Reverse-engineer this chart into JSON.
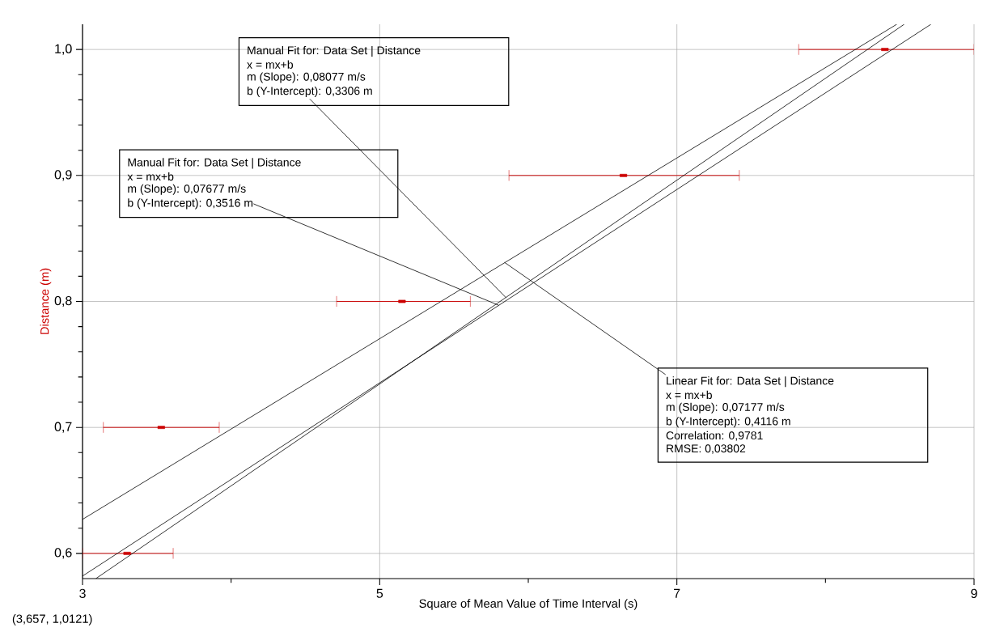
{
  "chart_data": {
    "type": "scatter",
    "xlabel": "Square of Mean Value of Time Interval (s)",
    "ylabel": "Distance (m)",
    "xlim": [
      3,
      9
    ],
    "ylim": [
      0.58,
      1.02
    ],
    "xticks": [
      3,
      {
        "value": 4,
        "label": null
      },
      5,
      {
        "value": 6,
        "label": null
      },
      7,
      {
        "value": 8,
        "label": null
      },
      9
    ],
    "yticks": [
      {
        "value": 0.6,
        "label": "0,6"
      },
      {
        "value": 0.62,
        "label": null
      },
      {
        "value": 0.64,
        "label": null
      },
      {
        "value": 0.66,
        "label": null
      },
      {
        "value": 0.68,
        "label": null
      },
      {
        "value": 0.7,
        "label": "0,7"
      },
      {
        "value": 0.72,
        "label": null
      },
      {
        "value": 0.74,
        "label": null
      },
      {
        "value": 0.76,
        "label": null
      },
      {
        "value": 0.78,
        "label": null
      },
      {
        "value": 0.8,
        "label": "0,8"
      },
      {
        "value": 0.82,
        "label": null
      },
      {
        "value": 0.84,
        "label": null
      },
      {
        "value": 0.86,
        "label": null
      },
      {
        "value": 0.88,
        "label": null
      },
      {
        "value": 0.9,
        "label": "0,9"
      },
      {
        "value": 0.92,
        "label": null
      },
      {
        "value": 0.94,
        "label": null
      },
      {
        "value": 0.96,
        "label": null
      },
      {
        "value": 0.98,
        "label": null
      },
      {
        "value": 1.0,
        "label": "1,0"
      }
    ],
    "grid": true,
    "series": [
      {
        "color": "#cc0000",
        "marker": "square",
        "x": [
          3.3,
          3.53,
          5.15,
          6.64,
          8.4
        ],
        "values": [
          0.6,
          0.7,
          0.8,
          0.9,
          1.0
        ],
        "xerrors": [
          [
            3.0,
            3.61
          ],
          [
            3.14,
            3.92
          ],
          [
            4.71,
            5.61
          ],
          [
            5.87,
            7.42
          ],
          [
            7.82,
            9.0
          ]
        ]
      },
      {
        "type": "line",
        "color": "#000000",
        "x": [
          3.09,
          8.53
        ],
        "values": [
          0.58,
          1.02
        ]
      },
      {
        "type": "line",
        "color": "#000000",
        "x": [
          3.0,
          8.71
        ],
        "values": [
          0.582,
          1.02
        ]
      },
      {
        "type": "line",
        "color": "#000000",
        "x": [
          3.0,
          8.48
        ],
        "values": [
          0.627,
          1.02
        ]
      }
    ],
    "annotations": [
      "Manual Fit for:  Data Set | Distance",
      "x = mx+b",
      "m (Slope): 0,08077 m/s",
      {
        "text": "b (Y-Intercept): 0,3306 m",
        "x": 5.85,
        "y": 0.803
      },
      "Manual Fit for:  Data Set | Distance",
      "x = mx+b",
      "m (Slope): 0,07677 m/s",
      {
        "text": "b (Y-Intercept): 0,3516 m",
        "x": 5.8,
        "y": 0.797
      },
      {
        "text": "Linear Fit for:  Data Set | Distance",
        "x": 5.84,
        "y": 0.831
      },
      "x = mx+b",
      "m (Slope): 0,07177 m/s",
      "b (Y-Intercept): 0,4116 m",
      "Correlation: 0,9781",
      "RMSE: 0,03802",
      "(3,657, 1,0121)"
    ]
  }
}
